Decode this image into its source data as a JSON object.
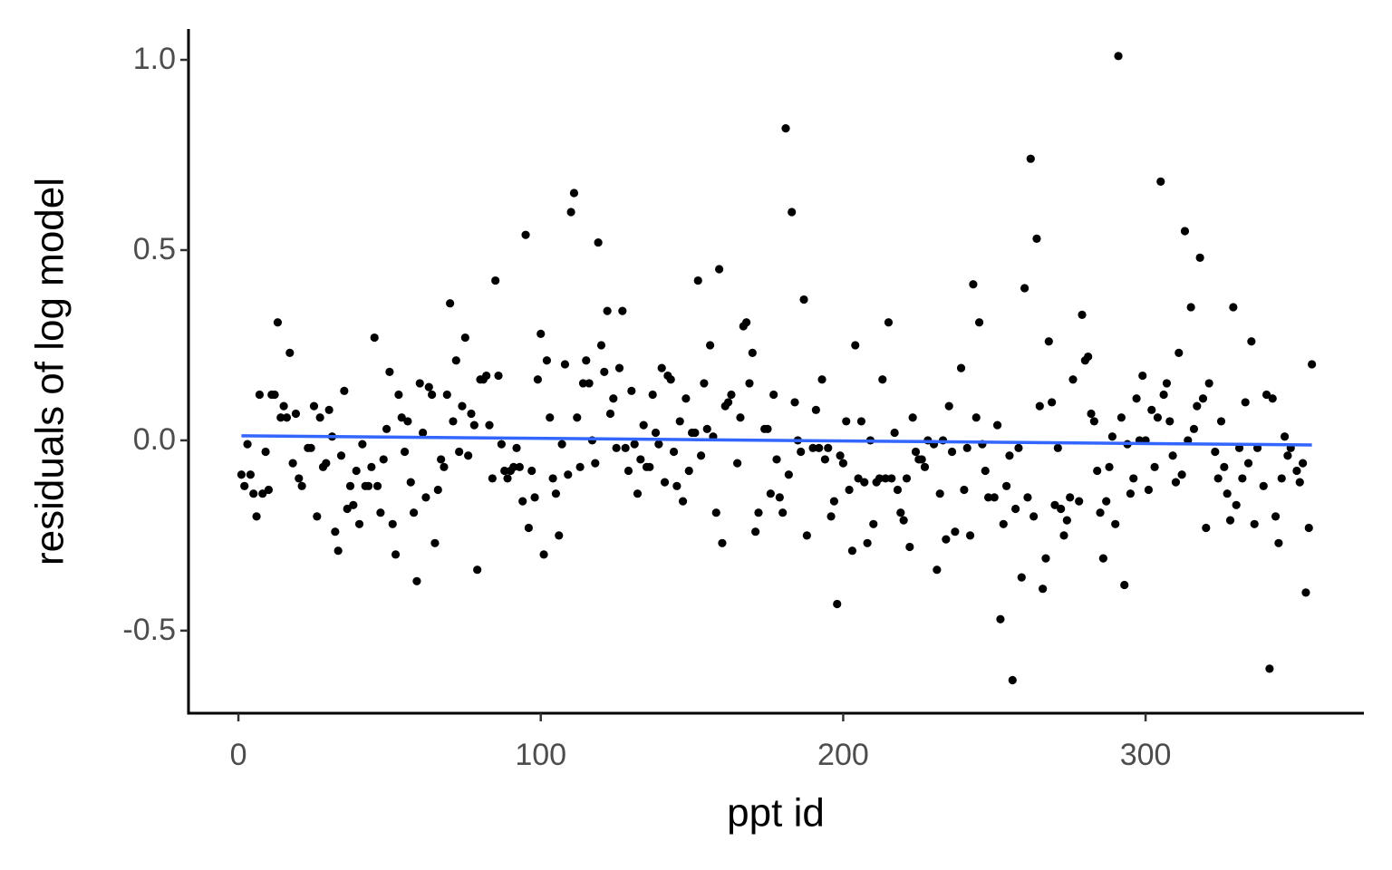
{
  "chart_data": {
    "type": "scatter",
    "xlabel": "ppt id",
    "ylabel": "residuals of log model",
    "xlim": [
      -16.5,
      372.2
    ],
    "ylim": [
      -0.717,
      1.081
    ],
    "xticks": [
      0,
      100,
      200,
      300
    ],
    "yticks": [
      -0.5,
      {
        "value": 0,
        "label": "0.0"
      },
      0.5,
      {
        "value": 1,
        "label": "1.0"
      }
    ],
    "series": [
      {
        "color": "#000000",
        "x": [
          1,
          2,
          3,
          4,
          5,
          6,
          7,
          8,
          9,
          10,
          11,
          12,
          13,
          14,
          15,
          16,
          17,
          18,
          19,
          20,
          21,
          23,
          24,
          25,
          26,
          27,
          28,
          29,
          30,
          31,
          32,
          33,
          34,
          35,
          36,
          37,
          38,
          39,
          40,
          41,
          42,
          43,
          44,
          45,
          46,
          47,
          48,
          49,
          50,
          51,
          52,
          53,
          54,
          55,
          56,
          57,
          58,
          59,
          60,
          61,
          62,
          63,
          64,
          65,
          66,
          67,
          68,
          69,
          70,
          71,
          72,
          73,
          74,
          75,
          76,
          77,
          78,
          79,
          80,
          81,
          82,
          83,
          84,
          85,
          86,
          87,
          88,
          89,
          90,
          91,
          92,
          93,
          94,
          95,
          96,
          97,
          98,
          99,
          100,
          101,
          102,
          103,
          104,
          105,
          106,
          107,
          108,
          109,
          110,
          111,
          112,
          113,
          114,
          115,
          116,
          117,
          118,
          119,
          120,
          121,
          122,
          123,
          124,
          125,
          126,
          127,
          128,
          129,
          130,
          131,
          132,
          133,
          134,
          135,
          136,
          137,
          138,
          139,
          140,
          141,
          142,
          143,
          144,
          145,
          146,
          147,
          148,
          149,
          150,
          151,
          152,
          153,
          154,
          155,
          156,
          157,
          158,
          159,
          160,
          161,
          162,
          163,
          165,
          166,
          167,
          168,
          169,
          170,
          171,
          172,
          174,
          175,
          176,
          177,
          178,
          179,
          180,
          181,
          182,
          183,
          184,
          185,
          186,
          187,
          188,
          190,
          191,
          192,
          193,
          194,
          195,
          196,
          197,
          198,
          199,
          200,
          201,
          202,
          203,
          204,
          205,
          206,
          207,
          208,
          209,
          210,
          211,
          212,
          213,
          214,
          215,
          216,
          217,
          218,
          219,
          220,
          221,
          222,
          223,
          224,
          225,
          226,
          227,
          228,
          230,
          231,
          232,
          233,
          234,
          235,
          236,
          237,
          239,
          240,
          241,
          242,
          243,
          244,
          245,
          246,
          247,
          248,
          250,
          251,
          252,
          253,
          254,
          255,
          256,
          257,
          258,
          259,
          260,
          261,
          262,
          263,
          264,
          265,
          266,
          267,
          268,
          269,
          270,
          271,
          272,
          273,
          274,
          275,
          276,
          278,
          279,
          280,
          281,
          282,
          283,
          284,
          285,
          286,
          287,
          288,
          289,
          290,
          291,
          292,
          293,
          294,
          295,
          296,
          297,
          298,
          299,
          300,
          301,
          302,
          303,
          304,
          305,
          306,
          307,
          308,
          309,
          310,
          311,
          312,
          313,
          314,
          315,
          316,
          317,
          318,
          319,
          320,
          321,
          323,
          324,
          325,
          326,
          327,
          328,
          329,
          330,
          331,
          332,
          333,
          334,
          335,
          336,
          337,
          339,
          340,
          341,
          342,
          343,
          344,
          345,
          346,
          347,
          348,
          350,
          351,
          352,
          353,
          354,
          355
        ],
        "values": [
          -0.09,
          -0.12,
          -0.01,
          -0.09,
          -0.14,
          -0.2,
          0.12,
          -0.14,
          -0.03,
          -0.13,
          0.12,
          0.12,
          0.31,
          0.06,
          0.09,
          0.06,
          0.23,
          -0.06,
          0.07,
          -0.1,
          -0.12,
          -0.02,
          -0.02,
          0.09,
          -0.2,
          0.06,
          -0.07,
          -0.06,
          0.08,
          0.01,
          -0.24,
          -0.29,
          -0.04,
          0.13,
          -0.18,
          -0.12,
          -0.17,
          -0.08,
          -0.22,
          -0.01,
          -0.12,
          -0.12,
          -0.07,
          0.27,
          -0.12,
          -0.19,
          -0.05,
          0.03,
          0.18,
          -0.22,
          -0.3,
          0.12,
          0.06,
          -0.03,
          0.05,
          -0.11,
          -0.19,
          -0.37,
          0.15,
          0.02,
          -0.15,
          0.14,
          0.12,
          -0.27,
          -0.13,
          -0.05,
          -0.07,
          0.12,
          0.36,
          0.05,
          0.21,
          -0.03,
          0.09,
          0.27,
          -0.04,
          0.07,
          0.04,
          -0.34,
          0.16,
          0.16,
          0.17,
          0.04,
          -0.1,
          0.42,
          0.17,
          -0.01,
          -0.08,
          -0.1,
          -0.08,
          -0.07,
          -0.02,
          -0.07,
          -0.16,
          0.54,
          -0.23,
          -0.08,
          -0.15,
          0.16,
          0.28,
          -0.3,
          0.21,
          0.06,
          -0.1,
          -0.14,
          -0.25,
          -0.01,
          0.2,
          -0.09,
          0.6,
          0.65,
          0.06,
          -0.07,
          0.15,
          0.21,
          0.15,
          0.0,
          -0.06,
          0.52,
          0.25,
          0.18,
          0.34,
          0.07,
          0.11,
          -0.02,
          0.19,
          0.34,
          -0.02,
          -0.08,
          0.13,
          -0.01,
          -0.14,
          -0.05,
          0.04,
          -0.07,
          -0.07,
          0.12,
          0.02,
          -0.01,
          0.19,
          -0.11,
          0.17,
          0.16,
          -0.03,
          -0.12,
          0.05,
          -0.16,
          0.11,
          -0.08,
          0.02,
          0.02,
          0.42,
          -0.04,
          0.15,
          0.03,
          0.25,
          0.01,
          -0.19,
          0.45,
          -0.27,
          0.09,
          0.1,
          0.12,
          -0.06,
          0.06,
          0.3,
          0.31,
          0.15,
          0.23,
          -0.24,
          -0.19,
          0.03,
          0.03,
          -0.14,
          0.12,
          -0.05,
          -0.15,
          -0.19,
          0.82,
          -0.09,
          0.6,
          0.1,
          0.0,
          -0.03,
          0.37,
          -0.25,
          -0.02,
          0.08,
          -0.02,
          0.16,
          -0.05,
          -0.02,
          -0.2,
          -0.16,
          -0.43,
          -0.04,
          -0.06,
          0.05,
          -0.13,
          -0.29,
          0.25,
          -0.1,
          0.05,
          -0.11,
          -0.27,
          0.0,
          -0.22,
          -0.11,
          -0.1,
          0.16,
          -0.1,
          0.31,
          -0.1,
          0.02,
          -0.13,
          -0.19,
          -0.21,
          -0.1,
          -0.28,
          0.06,
          -0.03,
          -0.05,
          -0.05,
          -0.07,
          0.0,
          -0.01,
          -0.34,
          -0.14,
          0.0,
          -0.26,
          0.09,
          -0.03,
          -0.24,
          0.19,
          -0.13,
          -0.02,
          -0.25,
          0.41,
          0.06,
          0.31,
          -0.01,
          -0.08,
          -0.15,
          -0.15,
          0.04,
          -0.47,
          -0.22,
          -0.12,
          -0.04,
          -0.63,
          -0.18,
          -0.02,
          -0.36,
          0.4,
          -0.15,
          0.74,
          -0.2,
          0.53,
          0.09,
          -0.39,
          -0.31,
          0.26,
          0.1,
          -0.17,
          -0.02,
          -0.18,
          -0.25,
          -0.21,
          -0.15,
          0.16,
          -0.16,
          0.33,
          0.21,
          0.22,
          0.07,
          0.05,
          -0.08,
          -0.19,
          -0.31,
          -0.16,
          -0.07,
          0.01,
          -0.22,
          1.01,
          0.06,
          -0.38,
          -0.01,
          -0.14,
          -0.1,
          0.11,
          0.0,
          0.17,
          0.0,
          -0.13,
          0.08,
          -0.07,
          0.06,
          0.68,
          0.12,
          0.15,
          0.05,
          -0.04,
          -0.11,
          0.23,
          -0.09,
          0.55,
          0.0,
          0.35,
          0.03,
          0.09,
          0.48,
          0.11,
          -0.23,
          0.15,
          -0.03,
          -0.1,
          0.05,
          -0.07,
          -0.14,
          -0.21,
          0.35,
          -0.17,
          -0.02,
          -0.1,
          0.1,
          -0.06,
          0.26,
          -0.22,
          -0.02,
          -0.12,
          0.12,
          -0.6,
          0.11,
          -0.2,
          -0.27,
          -0.1,
          0.01,
          -0.04,
          -0.02,
          -0.08,
          -0.11,
          -0.06,
          -0.4,
          -0.23,
          0.2
        ]
      }
    ],
    "fit": {
      "color": "#3366ff",
      "x": [
        1,
        355
      ],
      "values": [
        0.012,
        -0.012
      ]
    }
  }
}
